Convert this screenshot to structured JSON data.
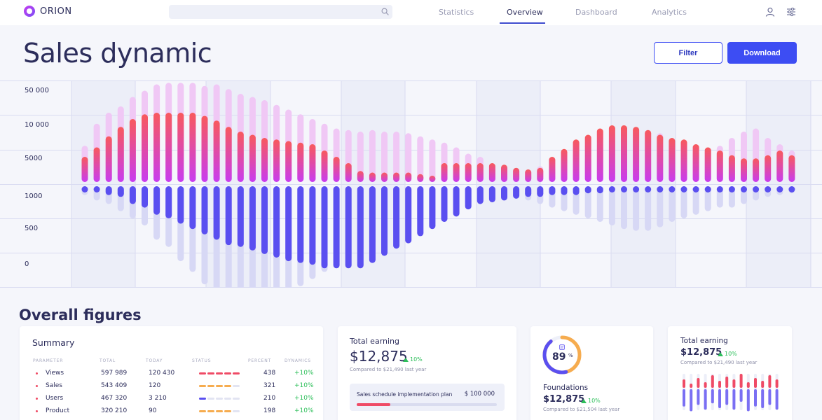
{
  "app": {
    "name": "ORION"
  },
  "search": {
    "placeholder": ""
  },
  "nav": {
    "items": [
      {
        "label": "Statistics",
        "active": false
      },
      {
        "label": "Overview",
        "active": true
      },
      {
        "label": "Dashboard",
        "active": false
      },
      {
        "label": "Analytics",
        "active": false
      }
    ]
  },
  "header": {
    "title": "Sales dynamic",
    "filter_label": "Filter",
    "download_label": "Download"
  },
  "colors": {
    "accent": "#3d4df3",
    "bar_top_start": "#f85a5c",
    "bar_top_end": "#c83cf0",
    "bar_bottom": "#5a4ff0",
    "bar_faded_top": "#f0c8f5",
    "bar_faded_bottom": "#d7d8f5",
    "positive": "#2dbf5a"
  },
  "chart_data": {
    "type": "bar",
    "title": "",
    "y_tick_labels": [
      "50 000",
      "10 000",
      "5000",
      "1000",
      "500",
      "0"
    ],
    "upper_faded": [
      0.23,
      0.37,
      0.44,
      0.48,
      0.54,
      0.58,
      0.62,
      0.63,
      0.63,
      0.63,
      0.61,
      0.62,
      0.59,
      0.56,
      0.54,
      0.52,
      0.49,
      0.46,
      0.43,
      0.4,
      0.37,
      0.34,
      0.33,
      0.32,
      0.33,
      0.32,
      0.32,
      0.31,
      0.29,
      0.27,
      0.25,
      0.22,
      0.18,
      0.16,
      0.1,
      0.1,
      0.07,
      0.06,
      0.1,
      0.1,
      0.05,
      0.09,
      0.16,
      0.23,
      0.28,
      0.32,
      0.35,
      0.33,
      0.31,
      0.25,
      0.22,
      0.2,
      0.21,
      0.23,
      0.28,
      0.32,
      0.34,
      0.28,
      0.24,
      0.2
    ],
    "upper_solid": [
      0.16,
      0.22,
      0.29,
      0.35,
      0.4,
      0.43,
      0.44,
      0.44,
      0.44,
      0.44,
      0.42,
      0.39,
      0.35,
      0.32,
      0.3,
      0.28,
      0.27,
      0.26,
      0.25,
      0.24,
      0.2,
      0.16,
      0.12,
      0.07,
      0.06,
      0.06,
      0.06,
      0.06,
      0.05,
      0.04,
      0.12,
      0.12,
      0.12,
      0.12,
      0.12,
      0.11,
      0.09,
      0.08,
      0.09,
      0.16,
      0.21,
      0.27,
      0.3,
      0.34,
      0.36,
      0.36,
      0.35,
      0.33,
      0.3,
      0.28,
      0.27,
      0.24,
      0.22,
      0.2,
      0.17,
      0.15,
      0.15,
      0.17,
      0.2,
      0.17
    ],
    "lower_faded": [
      0.05,
      0.08,
      0.1,
      0.14,
      0.18,
      0.22,
      0.3,
      0.34,
      0.42,
      0.48,
      0.55,
      0.6,
      0.6,
      0.62,
      0.62,
      0.61,
      0.6,
      0.58,
      0.56,
      0.52,
      0.48,
      0.44,
      0.4,
      0.37,
      0.33,
      0.3,
      0.27,
      0.24,
      0.21,
      0.18,
      0.15,
      0.13,
      0.11,
      0.09,
      0.08,
      0.08,
      0.07,
      0.08,
      0.1,
      0.12,
      0.14,
      0.16,
      0.18,
      0.2,
      0.22,
      0.24,
      0.25,
      0.25,
      0.23,
      0.2,
      0.18,
      0.16,
      0.14,
      0.12,
      0.12,
      0.1,
      0.08,
      0.06,
      0.05,
      0.04
    ],
    "lower_solid": [
      0.01,
      0.02,
      0.05,
      0.06,
      0.1,
      0.12,
      0.16,
      0.18,
      0.21,
      0.24,
      0.27,
      0.3,
      0.33,
      0.34,
      0.36,
      0.38,
      0.4,
      0.42,
      0.43,
      0.44,
      0.46,
      0.46,
      0.46,
      0.46,
      0.43,
      0.39,
      0.35,
      0.32,
      0.28,
      0.24,
      0.2,
      0.17,
      0.13,
      0.1,
      0.09,
      0.08,
      0.07,
      0.06,
      0.06,
      0.05,
      0.05,
      0.05,
      0.04,
      0.04,
      0.03,
      0.03,
      0.02,
      0.02,
      0.02,
      0.01,
      0.01,
      0.01,
      0.01,
      0.01,
      0.01,
      0.01,
      0.01,
      0.01,
      0.01,
      0.01
    ]
  },
  "overall": {
    "title": "Overall figures"
  },
  "summary": {
    "title": "Summary",
    "headers": [
      "PARAMETER",
      "TOTAL",
      "TODAY",
      "STATUS",
      "PERCENT",
      "DYNAMICS"
    ],
    "rows": [
      {
        "parameter": "Views",
        "total": "597 989",
        "today": "120 430",
        "percent": "438",
        "dynamics": "+10%",
        "status_color": "#ef4b66",
        "status_segments": 5,
        "status_filled": 5
      },
      {
        "parameter": "Sales",
        "total": "543 409",
        "today": "120",
        "percent": "321",
        "dynamics": "+10%",
        "status_color": "#f6ac4f",
        "status_segments": 5,
        "status_filled": 4
      },
      {
        "parameter": "Users",
        "total": "467 320",
        "today": "3 210",
        "percent": "210",
        "dynamics": "+10%",
        "status_color": "#5a4ff0",
        "status_segments": 5,
        "status_filled": 1
      },
      {
        "parameter": "Product",
        "total": "320 210",
        "today": "90",
        "percent": "198",
        "dynamics": "+10%",
        "status_color": "#f6ac4f",
        "status_segments": 5,
        "status_filled": 4
      }
    ]
  },
  "earning_card": {
    "label": "Total earning",
    "value": "$12,875",
    "change": "10%",
    "compare": "Compared to $21,490 last year",
    "plan_label": "Sales schedule implementation plan",
    "plan_amount": "$ 100 000",
    "plan_progress": 0.24
  },
  "foundations_card": {
    "donut_value": "89",
    "donut_unit": "%",
    "donut_progress": 0.89,
    "label": "Foundations",
    "value": "$12,875",
    "change": "10%",
    "compare": "Compared to $21,504 last year"
  },
  "earning_card2": {
    "label": "Total earning",
    "value": "$12,875",
    "change": "10%",
    "compare": "Compared to $21,490 last year",
    "mini_bars": [
      {
        "top": 0.3,
        "bottom": 0.55
      },
      {
        "top": 0.15,
        "bottom": 0.7
      },
      {
        "top": 0.35,
        "bottom": 0.5
      },
      {
        "top": 0.2,
        "bottom": 0.65
      },
      {
        "top": 0.45,
        "bottom": 0.45
      },
      {
        "top": 0.25,
        "bottom": 0.6
      },
      {
        "top": 0.4,
        "bottom": 0.5
      },
      {
        "top": 0.3,
        "bottom": 0.65
      },
      {
        "top": 0.5,
        "bottom": 0.4
      },
      {
        "top": 0.2,
        "bottom": 0.7
      },
      {
        "top": 0.35,
        "bottom": 0.55
      },
      {
        "top": 0.25,
        "bottom": 0.6
      },
      {
        "top": 0.45,
        "bottom": 0.5
      },
      {
        "top": 0.3,
        "bottom": 0.65
      }
    ]
  }
}
